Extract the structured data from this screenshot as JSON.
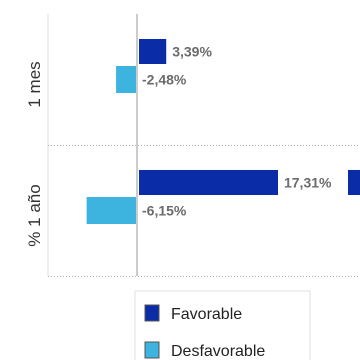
{
  "chart_data": {
    "type": "bar",
    "orientation": "horizontal",
    "categories": [
      "1 mes",
      "% 1 año"
    ],
    "series": [
      {
        "name": "Favorable",
        "color": "#0a2ca6",
        "values": [
          3.39,
          17.31
        ]
      },
      {
        "name": "Desfavorable",
        "color": "#3db3e0",
        "values": [
          -2.48,
          -6.15
        ]
      }
    ],
    "data_labels": [
      [
        "3,39%",
        "17,31%"
      ],
      [
        "-2,48%",
        "-6,15%"
      ]
    ],
    "legend": {
      "placement": "bottom-left",
      "items": [
        "Favorable",
        "Desfavorable"
      ]
    },
    "grid": false,
    "zero_line_color": "#cccccc",
    "separator_style": "dotted",
    "title": "",
    "xlabel": "",
    "ylabel": ""
  }
}
